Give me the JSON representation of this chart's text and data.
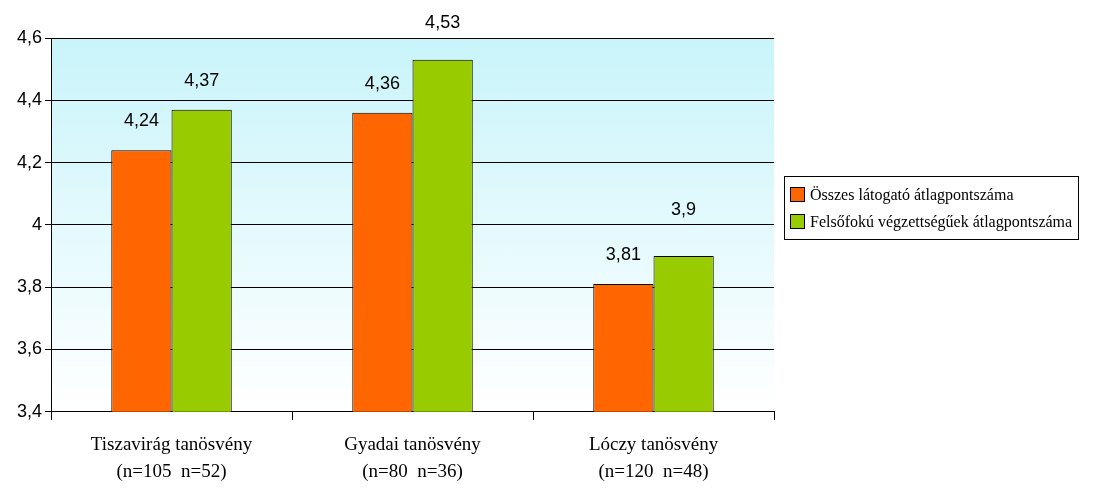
{
  "chart_data": {
    "type": "bar",
    "categories": [
      "Tiszavirág tanösvény\n(n=105  n=52)",
      "Gyadai tanösvény\n(n=80  n=36)",
      "Lóczy tanösvény\n(n=120  n=48)"
    ],
    "series": [
      {
        "name": "Összes látogató átlagpontszáma",
        "color": "#ff6600",
        "values": [
          4.24,
          4.36,
          3.81
        ],
        "value_labels": [
          "4,24",
          "4,36",
          "3,81"
        ]
      },
      {
        "name": "Felsőfokú végzettségűek átlagpontszáma",
        "color": "#99cc00",
        "values": [
          4.37,
          4.53,
          3.9
        ],
        "value_labels": [
          "4,37",
          "4,53",
          "3,9"
        ]
      }
    ],
    "ylim": [
      3.4,
      4.6
    ],
    "yticks": [
      {
        "value": 3.4,
        "label": "3,4"
      },
      {
        "value": 3.6,
        "label": "3,6"
      },
      {
        "value": 3.8,
        "label": "3,8"
      },
      {
        "value": 4,
        "label": "4"
      },
      {
        "value": 4.2,
        "label": "4,2"
      },
      {
        "value": 4.4,
        "label": "4,4"
      },
      {
        "value": 4.6,
        "label": "4,6"
      }
    ],
    "grid": "y",
    "legend": "right"
  }
}
